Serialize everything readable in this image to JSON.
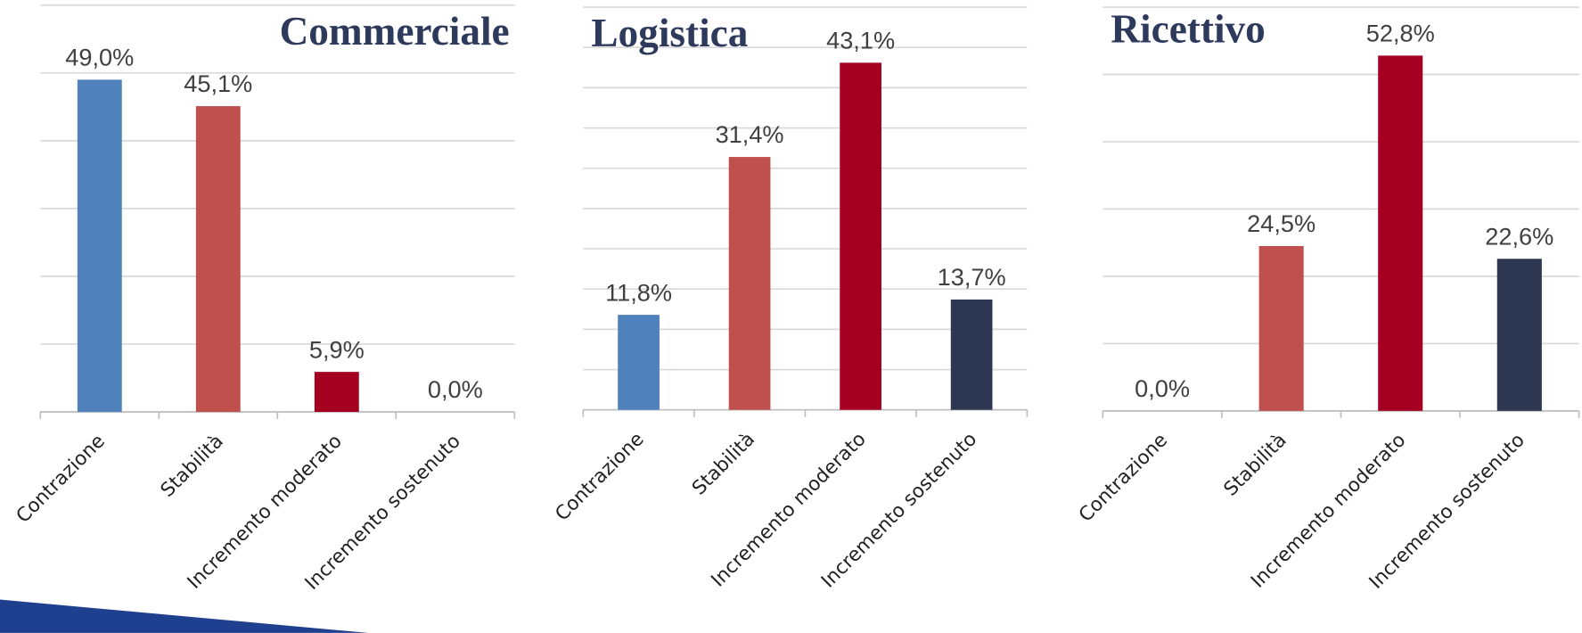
{
  "chart_data": [
    {
      "type": "bar",
      "title": "Commerciale",
      "title_align": "right",
      "categories": [
        "Contrazione",
        "Stabilità",
        "Incremento moderato",
        "Incremento sostenuto"
      ],
      "values": [
        49.0,
        45.1,
        5.9,
        0.0
      ],
      "value_labels": [
        "49,0%",
        "45,1%",
        "5,9%",
        "0,0%"
      ],
      "colors": [
        "#4f81bd",
        "#c0504d",
        "#a50021",
        "#2e3752"
      ],
      "ylim": [
        0,
        60
      ],
      "yticks": [
        0,
        10,
        20,
        30,
        40,
        50,
        60
      ],
      "grid": true
    },
    {
      "type": "bar",
      "title": "Logistica",
      "title_align": "left",
      "categories": [
        "Contrazione",
        "Stabilità",
        "Incremento moderato",
        "Incremento sostenuto"
      ],
      "values": [
        11.8,
        31.4,
        43.1,
        13.7
      ],
      "value_labels": [
        "11,8%",
        "31,4%",
        "43,1%",
        "13,7%"
      ],
      "colors": [
        "#4f81bd",
        "#c0504d",
        "#a50021",
        "#2e3752"
      ],
      "ylim": [
        0,
        50
      ],
      "yticks": [
        0,
        5,
        10,
        15,
        20,
        25,
        30,
        35,
        40,
        45,
        50
      ],
      "grid": true
    },
    {
      "type": "bar",
      "title": "Ricettivo",
      "title_align": "left",
      "categories": [
        "Contrazione",
        "Stabilità",
        "Incremento moderato",
        "Incremento sostenuto"
      ],
      "values": [
        0.0,
        24.5,
        52.8,
        22.6
      ],
      "value_labels": [
        "0,0%",
        "24,5%",
        "52,8%",
        "22,6%"
      ],
      "colors": [
        "#4f81bd",
        "#c0504d",
        "#a50021",
        "#2e3752"
      ],
      "ylim": [
        0,
        60
      ],
      "yticks": [
        0,
        10,
        20,
        30,
        40,
        50,
        60
      ],
      "grid": true
    }
  ]
}
